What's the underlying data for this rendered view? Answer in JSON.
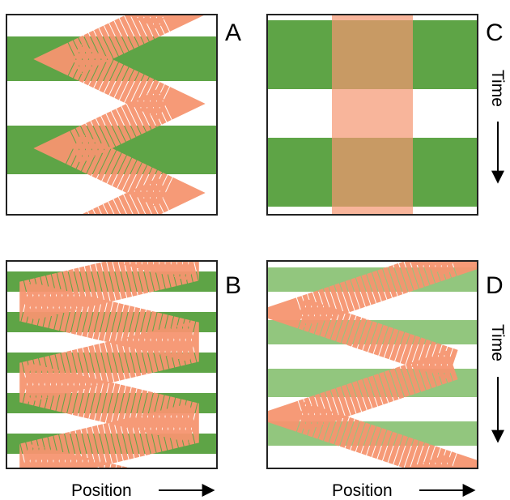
{
  "panels": [
    {
      "label": "A"
    },
    {
      "label": "B"
    },
    {
      "label": "C"
    },
    {
      "label": "D"
    }
  ],
  "x_axis_labels": [
    "Position",
    "Position"
  ],
  "y_axis_labels": [
    "Time",
    "Time"
  ]
}
